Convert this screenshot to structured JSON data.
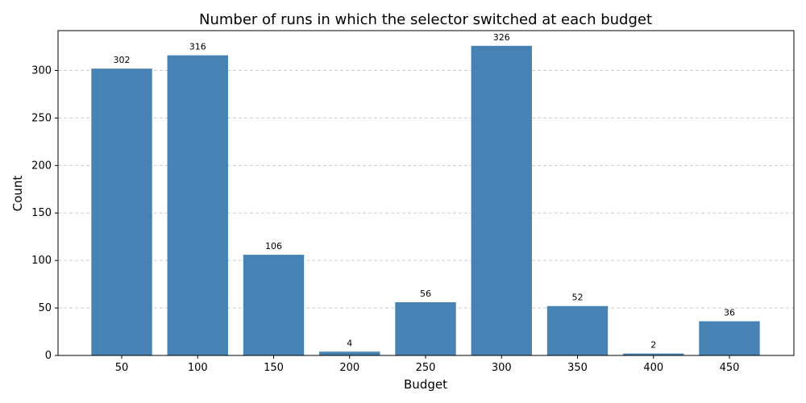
{
  "chart_data": {
    "type": "bar",
    "title": "Number of runs in which the selector switched at each budget",
    "xlabel": "Budget",
    "ylabel": "Count",
    "categories": [
      "50",
      "100",
      "150",
      "200",
      "250",
      "300",
      "350",
      "400",
      "450"
    ],
    "values": [
      302,
      316,
      106,
      4,
      56,
      326,
      52,
      2,
      36
    ],
    "data_labels": [
      "302",
      "316",
      "106",
      "4",
      "56",
      "326",
      "52",
      "2",
      "36"
    ],
    "ylim": [
      0,
      342
    ],
    "yticks": [
      0,
      50,
      100,
      150,
      200,
      250,
      300
    ],
    "grid": "y-dashed",
    "bar_color": "#4682b4",
    "grid_color": "#cccccc",
    "legend": "none"
  }
}
